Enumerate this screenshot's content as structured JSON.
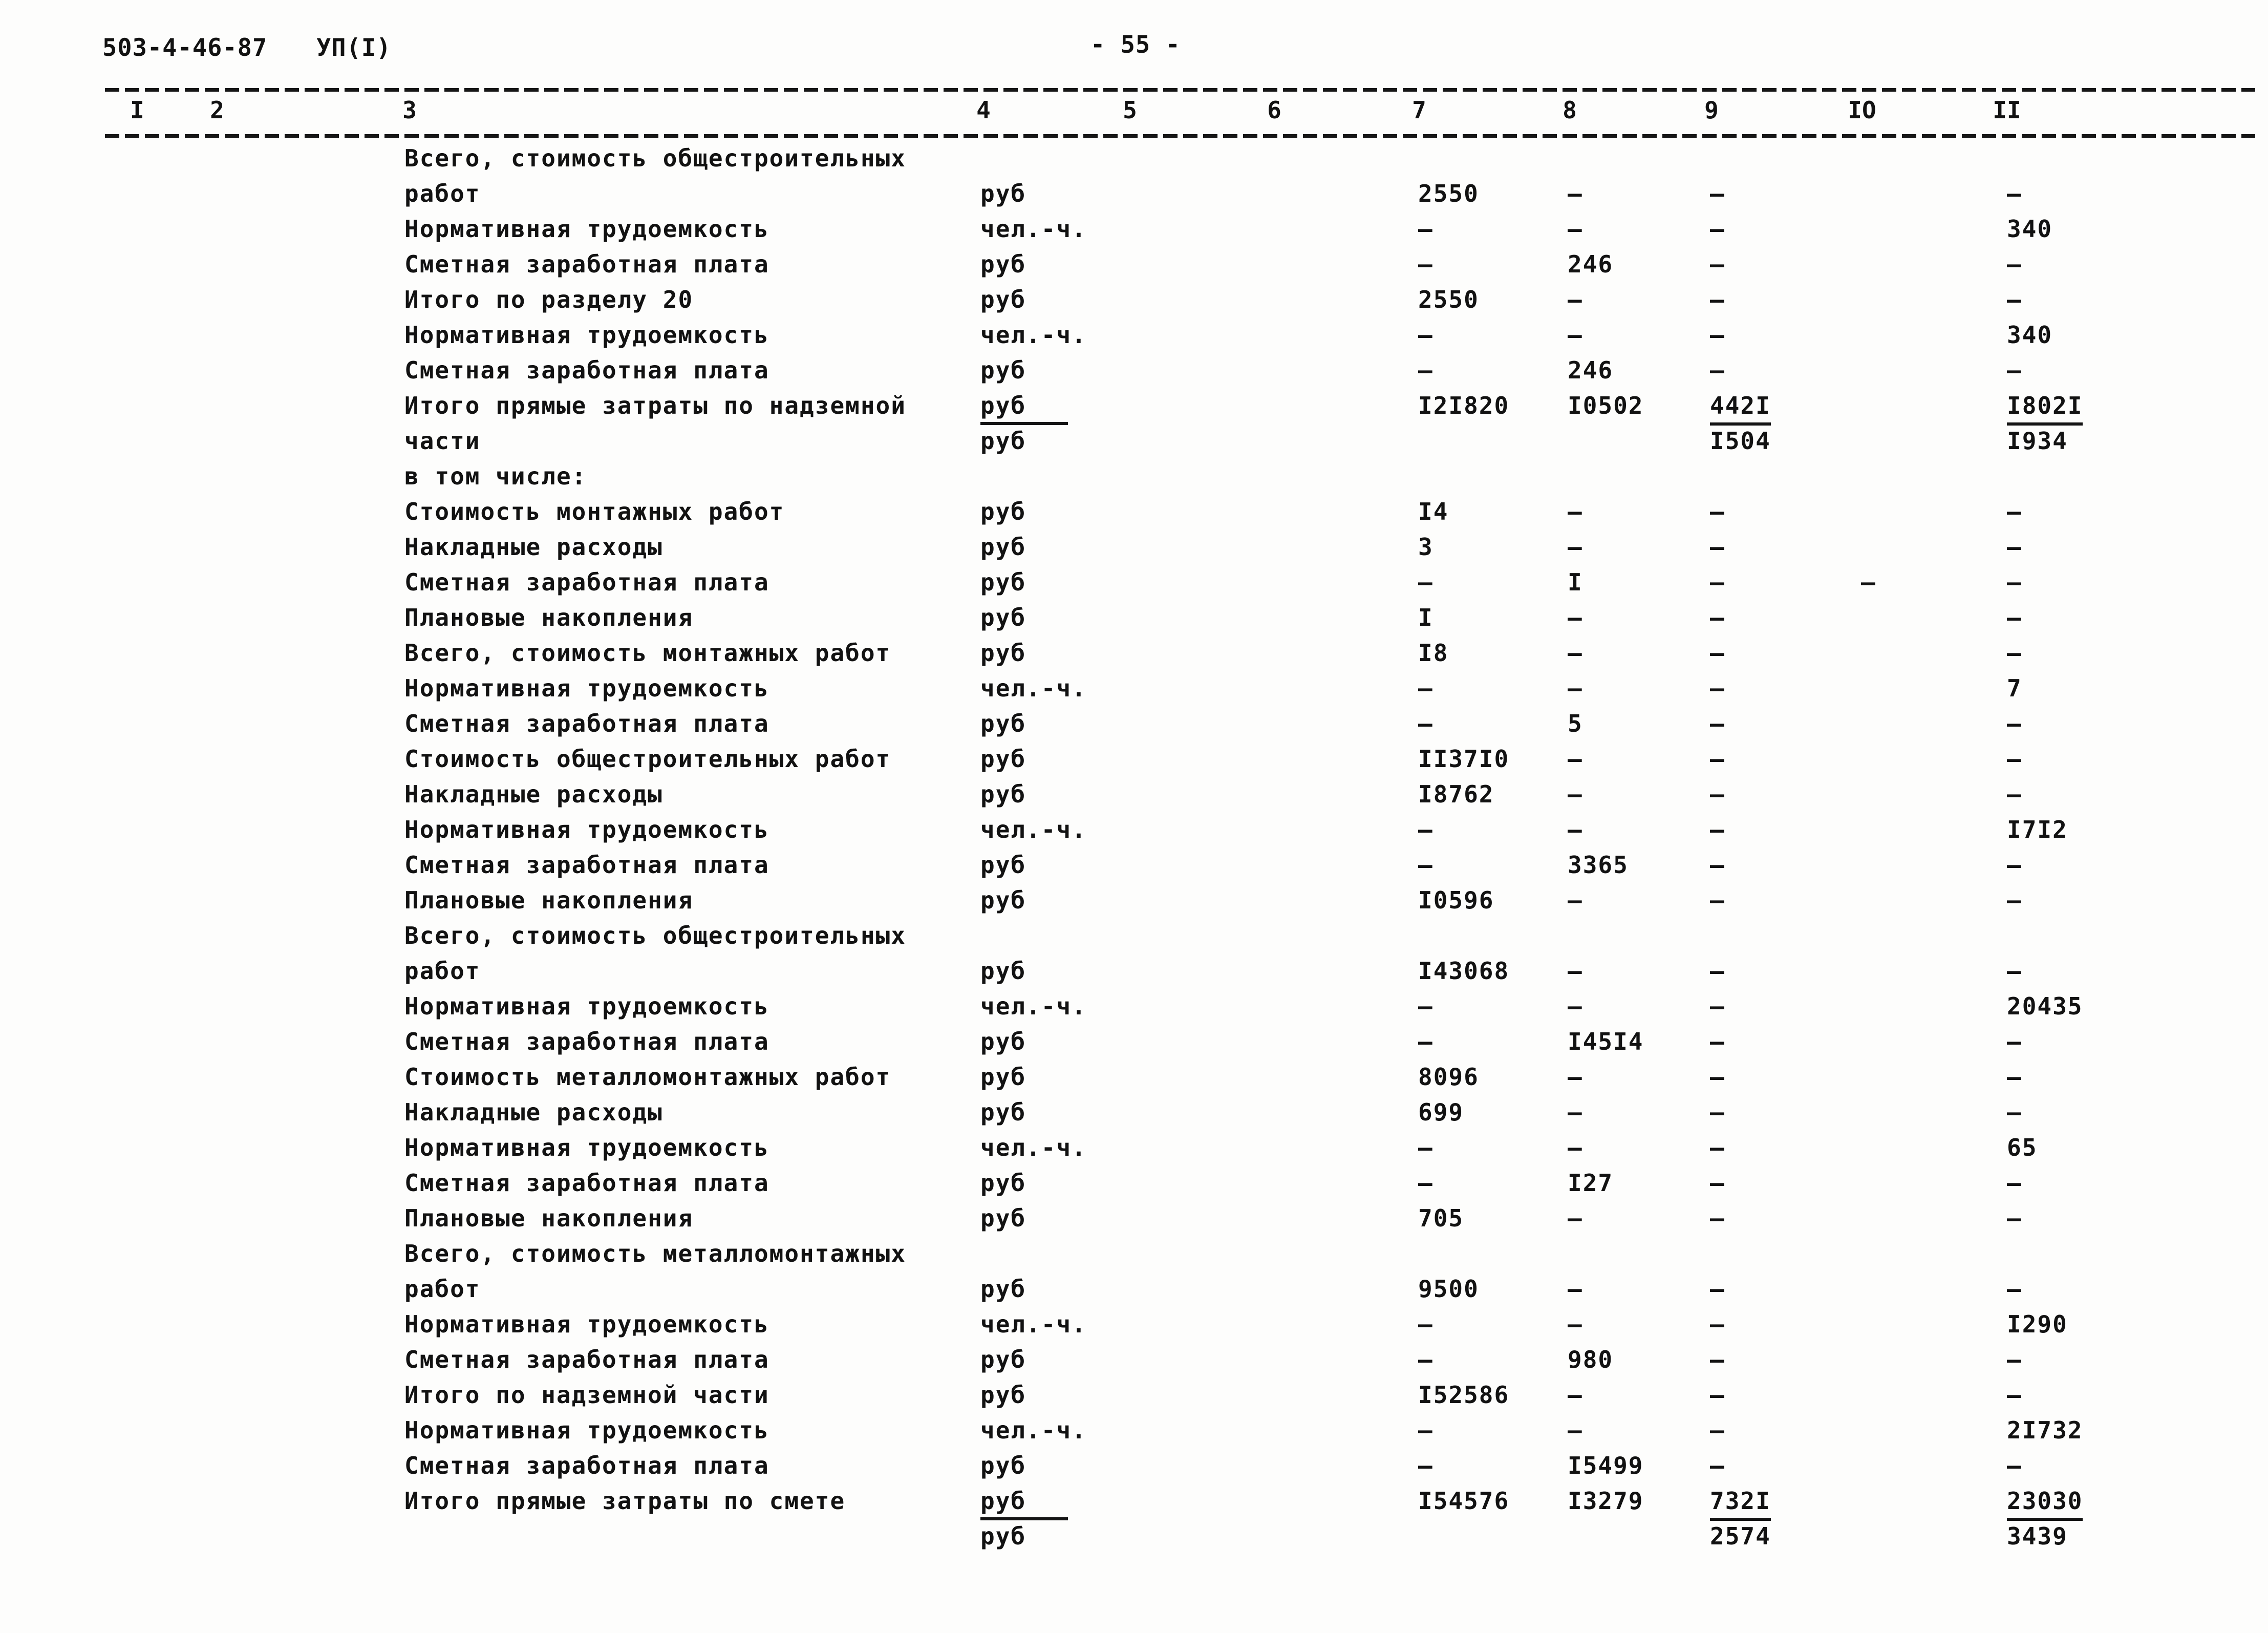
{
  "page": {
    "doc_number": "503-4-46-87",
    "doc_series": "УП(I)",
    "page_number": "- 55 -"
  },
  "colors": {
    "ink": "#121212",
    "paper": "#fdfdfc"
  },
  "table": {
    "column_numbers": [
      "I",
      "2",
      "3",
      "4",
      "5",
      "6",
      "7",
      "8",
      "9",
      "IO",
      "II"
    ],
    "rows": [
      {
        "label": "Всего, стоимость общестроительных",
        "label2": "работ",
        "unit": "руб",
        "unit_line": 2,
        "values_line": 2,
        "v7": "2550",
        "v8": "–",
        "v9": "–",
        "v10": "",
        "v11": "–"
      },
      {
        "label": "Нормативная трудоемкость",
        "unit": "чел.-ч.",
        "v7": "–",
        "v8": "–",
        "v9": "–",
        "v10": "",
        "v11": "340"
      },
      {
        "label": "Сметная заработная плата",
        "unit": "руб",
        "v7": "–",
        "v8": "246",
        "v9": "–",
        "v10": "",
        "v11": "–"
      },
      {
        "label": "Итого по разделу 20",
        "unit": "руб",
        "v7": "2550",
        "v8": "–",
        "v9": "–",
        "v10": "",
        "v11": "–"
      },
      {
        "label": "Нормативная трудоемкость",
        "unit": "чел.-ч.",
        "v7": "–",
        "v8": "–",
        "v9": "–",
        "v10": "",
        "v11": "340"
      },
      {
        "label": "Сметная заработная плата",
        "unit": "руб",
        "v7": "–",
        "v8": "246",
        "v9": "–",
        "v10": "",
        "v11": "–"
      },
      {
        "label": "Итого прямые затраты по надземной",
        "label2": "части",
        "unit": "руб",
        "unit_underlined": true,
        "v7": "I2I820",
        "v8": "I0502",
        "v9": "442I",
        "u9": true,
        "v10": "",
        "v11": "I802I",
        "u11": true,
        "line2": {
          "unit": "руб",
          "v9": "I504",
          "v11": "I934"
        }
      },
      {
        "label": "в том числе:"
      },
      {
        "label": "Стоимость монтажных работ",
        "unit": "руб",
        "v7": "I4",
        "v8": "–",
        "v9": "–",
        "v10": "",
        "v11": "–"
      },
      {
        "label": "Накладные расходы",
        "unit": "руб",
        "v7": "3",
        "v8": "–",
        "v9": "–",
        "v10": "",
        "v11": "–"
      },
      {
        "label": "Сметная заработная плата",
        "unit": "руб",
        "v7": "–",
        "v8": "I",
        "v9": "–",
        "v10": "–",
        "v11": "–"
      },
      {
        "label": "Плановые накопления",
        "unit": "руб",
        "v7": "I",
        "v8": "–",
        "v9": "–",
        "v10": "",
        "v11": "–"
      },
      {
        "label": "Всего, стоимость монтажных работ",
        "unit": "руб",
        "v7": "I8",
        "v8": "–",
        "v9": "–",
        "v10": "",
        "v11": "–"
      },
      {
        "label": "Нормативная трудоемкость",
        "unit": "чел.-ч.",
        "v7": "–",
        "v8": "–",
        "v9": "–",
        "v10": "",
        "v11": "7"
      },
      {
        "label": "Сметная заработная плата",
        "unit": "руб",
        "v7": "–",
        "v8": "5",
        "v9": "–",
        "v10": "",
        "v11": "–"
      },
      {
        "label": "Стоимость общестроительных работ",
        "unit": "руб",
        "v7": "II37I0",
        "v8": "–",
        "v9": "–",
        "v10": "",
        "v11": "–"
      },
      {
        "label": "Накладные расходы",
        "unit": "руб",
        "v7": "I8762",
        "v8": "–",
        "v9": "–",
        "v10": "",
        "v11": "–"
      },
      {
        "label": "Нормативная трудоемкость",
        "unit": "чел.-ч.",
        "v7": "–",
        "v8": "–",
        "v9": "–",
        "v10": "",
        "v11": "I7I2"
      },
      {
        "label": "Сметная заработная плата",
        "unit": "руб",
        "v7": "–",
        "v8": "3365",
        "v9": "–",
        "v10": "",
        "v11": "–"
      },
      {
        "label": "Плановые накопления",
        "unit": "руб",
        "v7": "I0596",
        "v8": "–",
        "v9": "–",
        "v10": "",
        "v11": "–"
      },
      {
        "label": "Всего, стоимость общестроительных",
        "label2": "работ",
        "unit": "руб",
        "unit_line": 2,
        "values_line": 2,
        "v7": "I43068",
        "v8": "–",
        "v9": "–",
        "v10": "",
        "v11": "–"
      },
      {
        "label": "Нормативная трудоемкость",
        "unit": "чел.-ч.",
        "v7": "–",
        "v8": "–",
        "v9": "–",
        "v10": "",
        "v11": "20435"
      },
      {
        "label": "Сметная заработная плата",
        "unit": "руб",
        "v7": "–",
        "v8": "I45I4",
        "v9": "–",
        "v10": "",
        "v11": "–"
      },
      {
        "label": "Стоимость металломонтажных работ",
        "unit": "руб",
        "v7": "8096",
        "v8": "–",
        "v9": "–",
        "v10": "",
        "v11": "–"
      },
      {
        "label": "Накладные расходы",
        "unit": "руб",
        "v7": "699",
        "v8": "–",
        "v9": "–",
        "v10": "",
        "v11": "–"
      },
      {
        "label": "Нормативная трудоемкость",
        "unit": "чел.-ч.",
        "v7": "–",
        "v8": "–",
        "v9": "–",
        "v10": "",
        "v11": "65"
      },
      {
        "label": "Сметная заработная плата",
        "unit": "руб",
        "v7": "–",
        "v8": "I27",
        "v9": "–",
        "v10": "",
        "v11": "–"
      },
      {
        "label": "Плановые накопления",
        "unit": "руб",
        "v7": "705",
        "v8": "–",
        "v9": "–",
        "v10": "",
        "v11": "–"
      },
      {
        "label": "Всего, стоимость металломонтажных",
        "label2": "работ",
        "unit": "руб",
        "unit_line": 2,
        "values_line": 2,
        "v7": "9500",
        "v8": "–",
        "v9": "–",
        "v10": "",
        "v11": "–"
      },
      {
        "label": "Нормативная трудоемкость",
        "unit": "чел.-ч.",
        "v7": "–",
        "v8": "–",
        "v9": "–",
        "v10": "",
        "v11": "I290"
      },
      {
        "label": "Сметная заработная плата",
        "unit": "руб",
        "v7": "–",
        "v8": "980",
        "v9": "–",
        "v10": "",
        "v11": "–"
      },
      {
        "label": "Итого по надземной части",
        "unit": "руб",
        "v7": "I52586",
        "v8": "–",
        "v9": "–",
        "v10": "",
        "v11": "–"
      },
      {
        "label": "Нормативная трудоемкость",
        "unit": "чел.-ч.",
        "v7": "–",
        "v8": "–",
        "v9": "–",
        "v10": "",
        "v11": "2I732"
      },
      {
        "label": "Сметная заработная плата",
        "unit": "руб",
        "v7": "–",
        "v8": "I5499",
        "v9": "–",
        "v10": "",
        "v11": "–"
      },
      {
        "label": "Итого прямые затраты по смете",
        "unit": "руб",
        "unit_underlined": true,
        "v7": "I54576",
        "v8": "I3279",
        "v9": "732I",
        "u9": true,
        "v10": "",
        "v11": "23030",
        "u11": true,
        "line2": {
          "unit": "руб",
          "v9": "2574",
          "v11": "3439"
        }
      }
    ]
  }
}
